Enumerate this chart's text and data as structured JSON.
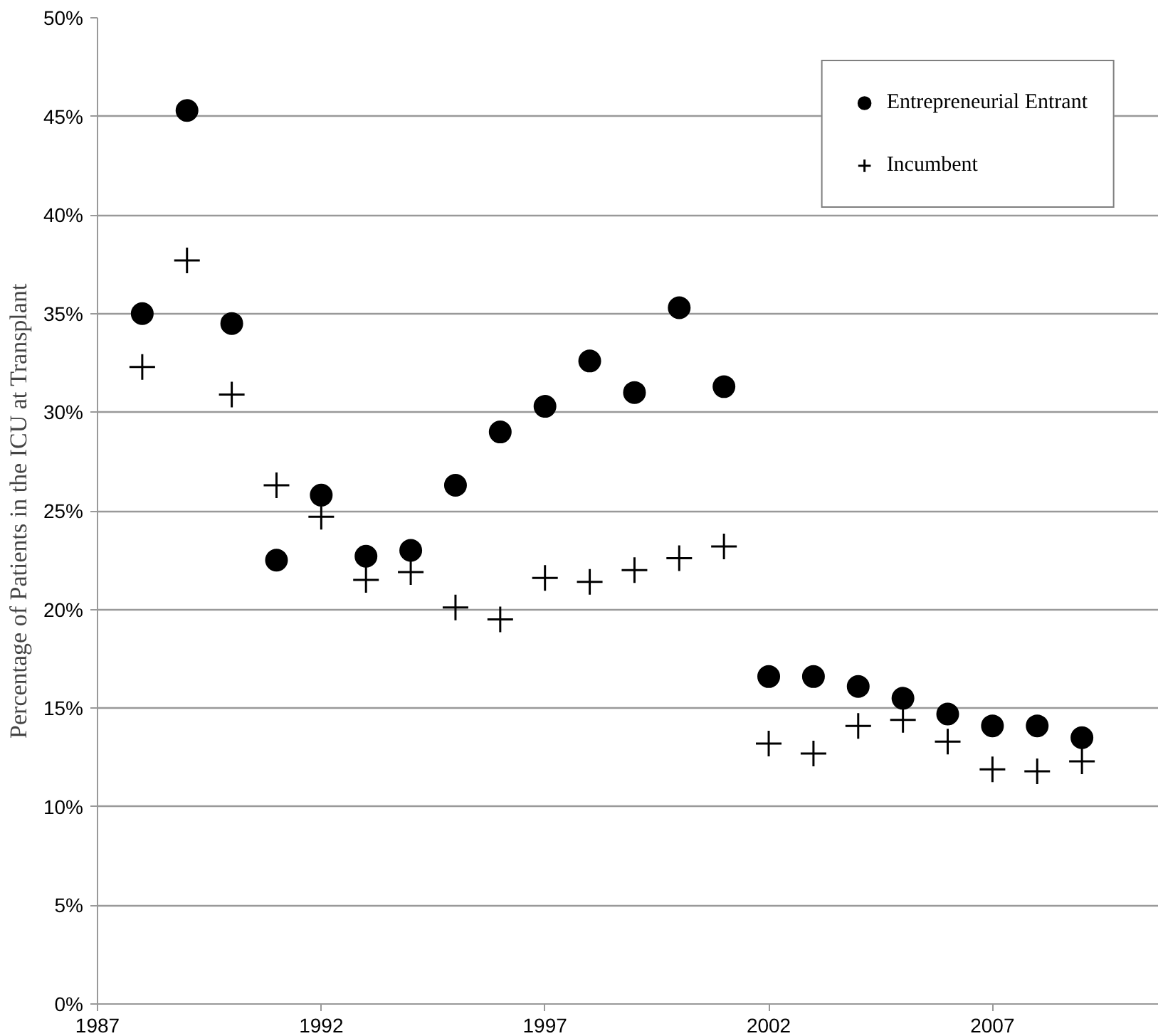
{
  "chart_data": {
    "type": "scatter",
    "ylabel": "Percentage of Patients in the ICU at Transplant",
    "x": [
      1988,
      1989,
      1990,
      1991,
      1992,
      1993,
      1994,
      1995,
      1996,
      1997,
      1998,
      1999,
      2000,
      2001,
      2002,
      2003,
      2004,
      2005,
      2006,
      2007,
      2008,
      2009
    ],
    "series": [
      {
        "name": "Entrepreneurial Entrant",
        "color": "#000000",
        "marker": "circle",
        "values": [
          35.0,
          45.3,
          34.5,
          22.5,
          25.8,
          22.7,
          23.0,
          26.3,
          29.0,
          30.3,
          32.6,
          31.0,
          35.3,
          31.3,
          16.6,
          16.6,
          16.1,
          15.5,
          14.7,
          14.1,
          14.1,
          13.5
        ]
      },
      {
        "name": "Incumbent",
        "color": "#000000",
        "marker": "cross",
        "values": [
          32.3,
          37.7,
          30.9,
          26.3,
          24.7,
          21.5,
          21.9,
          20.1,
          19.5,
          21.6,
          21.4,
          22.0,
          22.6,
          23.2,
          13.2,
          12.7,
          14.1,
          14.4,
          13.3,
          11.9,
          11.8,
          12.3
        ]
      }
    ],
    "xlim": [
      1987,
      2010.7
    ],
    "xticks": [
      1987,
      1992,
      1997,
      2002,
      2007
    ],
    "ylim": [
      0,
      50
    ],
    "yticks": [
      {
        "value": 0,
        "label": "0%"
      },
      {
        "value": 5,
        "label": "5%"
      },
      {
        "value": 10,
        "label": "10%"
      },
      {
        "value": 15,
        "label": "15%"
      },
      {
        "value": 20,
        "label": "20%"
      },
      {
        "value": 25,
        "label": "25%"
      },
      {
        "value": 30,
        "label": "30%"
      },
      {
        "value": 35,
        "label": "35%"
      },
      {
        "value": 40,
        "label": "40%"
      },
      {
        "value": 45,
        "label": "45%"
      },
      {
        "value": 50,
        "label": "50%"
      }
    ],
    "grid": "y",
    "legend": "top right"
  }
}
